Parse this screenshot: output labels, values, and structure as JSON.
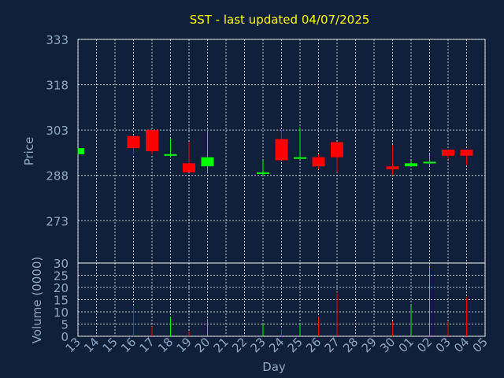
{
  "chart_data": {
    "title": "SST - last updated 04/07/2025",
    "type": "candlestick",
    "price_panel": {
      "ylabel": "Price",
      "ylim": [
        259,
        333
      ],
      "yticks": [
        "333",
        "318",
        "303",
        "288",
        "273"
      ]
    },
    "volume_panel": {
      "ylabel": "Volume (0000)",
      "ylim": [
        0,
        30
      ],
      "yticks": [
        "30",
        "25",
        "20",
        "15",
        "10",
        "5",
        "0"
      ]
    },
    "xlabel": "Day",
    "days": [
      "13",
      "14",
      "15",
      "16",
      "17",
      "18",
      "19",
      "20",
      "21",
      "22",
      "23",
      "24",
      "25",
      "26",
      "27",
      "28",
      "29",
      "30",
      "01",
      "02",
      "03",
      "04",
      "05"
    ],
    "candles": [
      {
        "day": "13",
        "open": 295.0,
        "close": 297.0,
        "high": 297.0,
        "low": 295.0,
        "volume": 0
      },
      {
        "day": "16",
        "open": 301.0,
        "close": 297.0,
        "high": 301.0,
        "low": 295.0,
        "volume": 12
      },
      {
        "day": "17",
        "open": 303.0,
        "close": 296.0,
        "high": 303.0,
        "low": 295.0,
        "volume": 4
      },
      {
        "day": "18",
        "open": 295.0,
        "close": 295.0,
        "high": 300.0,
        "low": 294.0,
        "volume": 8
      },
      {
        "day": "19",
        "open": 292.0,
        "close": 289.0,
        "high": 299.0,
        "low": 289.0,
        "volume": 2
      },
      {
        "day": "20",
        "open": 291.0,
        "close": 294.0,
        "high": 303.0,
        "low": 289.0,
        "volume": 7
      },
      {
        "day": "23",
        "open": 289.0,
        "close": 289.0,
        "high": 293.0,
        "low": 288.0,
        "volume": 5
      },
      {
        "day": "24",
        "open": 300.0,
        "close": 293.0,
        "high": 303.0,
        "low": 293.0,
        "volume": 3
      },
      {
        "day": "25",
        "open": 294.0,
        "close": 294.0,
        "high": 304.0,
        "low": 294.0,
        "volume": 5
      },
      {
        "day": "26",
        "open": 294.0,
        "close": 291.0,
        "high": 295.0,
        "low": 290.0,
        "volume": 8
      },
      {
        "day": "27",
        "open": 299.0,
        "close": 294.0,
        "high": 299.0,
        "low": 289.0,
        "volume": 18
      },
      {
        "day": "30",
        "open": 291.0,
        "close": 290.0,
        "high": 298.0,
        "low": 288.0,
        "volume": 6
      },
      {
        "day": "01",
        "open": 291.0,
        "close": 292.0,
        "high": 293.0,
        "low": 291.0,
        "volume": 13
      },
      {
        "day": "02",
        "open": 292.0,
        "close": 292.5,
        "high": 295.0,
        "low": 291.0,
        "volume": 29
      },
      {
        "day": "03",
        "open": 296.5,
        "close": 294.5,
        "high": 296.5,
        "low": 293.5,
        "volume": 6
      },
      {
        "day": "04",
        "open": 296.5,
        "close": 294.5,
        "high": 296.5,
        "low": 291.5,
        "volume": 16
      }
    ],
    "grid": true,
    "colors": {
      "up": "#00ff00",
      "down": "#ff0000",
      "background": "#11203a",
      "title": "#ffff00",
      "axis": "#8fa8c8"
    }
  }
}
